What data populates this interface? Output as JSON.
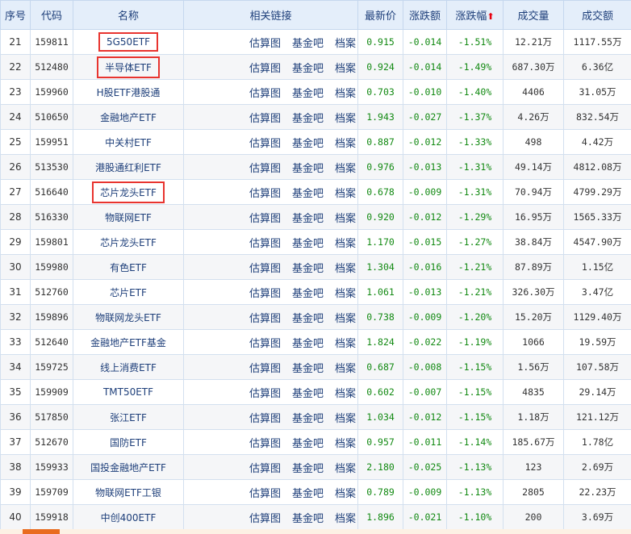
{
  "headers": [
    "序号",
    "代码",
    "名称",
    "相关链接",
    "最新价",
    "涨跌额",
    "涨跌幅",
    "成交量",
    "成交额"
  ],
  "sort_indicator": "arrow-up-icon",
  "link_labels": [
    "估算图",
    "基金吧",
    "档案"
  ],
  "rows": [
    [
      "21",
      "159811",
      "5G50ETF",
      "0.915",
      "-0.014",
      "-1.51%",
      "12.21万",
      "1117.55万",
      true
    ],
    [
      "22",
      "512480",
      "半导体ETF",
      "0.924",
      "-0.014",
      "-1.49%",
      "687.30万",
      "6.36亿",
      true
    ],
    [
      "23",
      "159960",
      "H股ETF港股通",
      "0.703",
      "-0.010",
      "-1.40%",
      "4406",
      "31.05万",
      false
    ],
    [
      "24",
      "510650",
      "金融地产ETF",
      "1.943",
      "-0.027",
      "-1.37%",
      "4.26万",
      "832.54万",
      false
    ],
    [
      "25",
      "159951",
      "中关村ETF",
      "0.887",
      "-0.012",
      "-1.33%",
      "498",
      "4.42万",
      false
    ],
    [
      "26",
      "513530",
      "港股通红利ETF",
      "0.976",
      "-0.013",
      "-1.31%",
      "49.14万",
      "4812.08万",
      false
    ],
    [
      "27",
      "516640",
      "芯片龙头ETF",
      "0.678",
      "-0.009",
      "-1.31%",
      "70.94万",
      "4799.29万",
      true
    ],
    [
      "28",
      "516330",
      "物联网ETF",
      "0.920",
      "-0.012",
      "-1.29%",
      "16.95万",
      "1565.33万",
      false
    ],
    [
      "29",
      "159801",
      "芯片龙头ETF",
      "1.170",
      "-0.015",
      "-1.27%",
      "38.84万",
      "4547.90万",
      false
    ],
    [
      "30",
      "159980",
      "有色ETF",
      "1.304",
      "-0.016",
      "-1.21%",
      "87.89万",
      "1.15亿",
      false
    ],
    [
      "31",
      "512760",
      "芯片ETF",
      "1.061",
      "-0.013",
      "-1.21%",
      "326.30万",
      "3.47亿",
      false
    ],
    [
      "32",
      "159896",
      "物联网龙头ETF",
      "0.738",
      "-0.009",
      "-1.20%",
      "15.20万",
      "1129.40万",
      false
    ],
    [
      "33",
      "512640",
      "金融地产ETF基金",
      "1.824",
      "-0.022",
      "-1.19%",
      "1066",
      "19.59万",
      false
    ],
    [
      "34",
      "159725",
      "线上消费ETF",
      "0.687",
      "-0.008",
      "-1.15%",
      "1.56万",
      "107.58万",
      false
    ],
    [
      "35",
      "159909",
      "TMT50ETF",
      "0.602",
      "-0.007",
      "-1.15%",
      "4835",
      "29.14万",
      false
    ],
    [
      "36",
      "517850",
      "张江ETF",
      "1.034",
      "-0.012",
      "-1.15%",
      "1.18万",
      "121.12万",
      false
    ],
    [
      "37",
      "512670",
      "国防ETF",
      "0.957",
      "-0.011",
      "-1.14%",
      "185.67万",
      "1.78亿",
      false
    ],
    [
      "38",
      "159933",
      "国投金融地产ETF",
      "2.180",
      "-0.025",
      "-1.13%",
      "123",
      "2.69万",
      false
    ],
    [
      "39",
      "159709",
      "物联网ETF工银",
      "0.789",
      "-0.009",
      "-1.13%",
      "2805",
      "22.23万",
      false
    ],
    [
      "40",
      "159918",
      "中创400ETF",
      "1.896",
      "-0.021",
      "-1.10%",
      "200",
      "3.69万",
      false
    ]
  ],
  "colors": {
    "down": "#138a13",
    "highlight": "#e8342f",
    "header_bg": "#e4eefa",
    "link": "#1e3f7a"
  }
}
